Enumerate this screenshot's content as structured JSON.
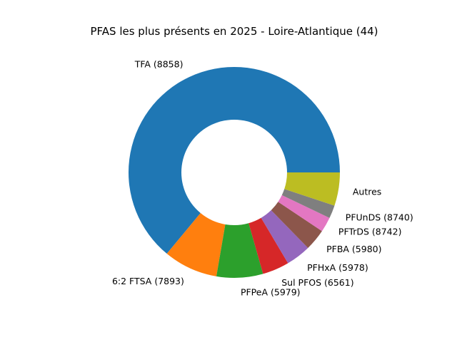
{
  "chart_data": {
    "type": "pie",
    "variant": "donut",
    "title": "PFAS les plus présents en 2025 - Loire-Atlantique (44)",
    "start_angle_deg": 0,
    "direction": "counterclockwise",
    "slices": [
      {
        "label": "TFA (8858)",
        "value": 64.0,
        "color": "#1f77b4"
      },
      {
        "label": "6:2 FTSA (7893)",
        "value": 8.3,
        "color": "#ff7f0e"
      },
      {
        "label": "PFPeA (5979)",
        "value": 7.1,
        "color": "#2ca02c"
      },
      {
        "label": "Sul PFOS (6561)",
        "value": 4.1,
        "color": "#d62728"
      },
      {
        "label": "PFHxA (5978)",
        "value": 3.8,
        "color": "#9467bd"
      },
      {
        "label": "PFBA (5980)",
        "value": 3.3,
        "color": "#8c564b"
      },
      {
        "label": "PFTrDS (8742)",
        "value": 2.3,
        "color": "#e377c2"
      },
      {
        "label": "PFUnDS (8740)",
        "value": 2.0,
        "color": "#7f7f7f"
      },
      {
        "label": "Autres",
        "value": 5.1,
        "color": "#bcbd22"
      }
    ]
  }
}
